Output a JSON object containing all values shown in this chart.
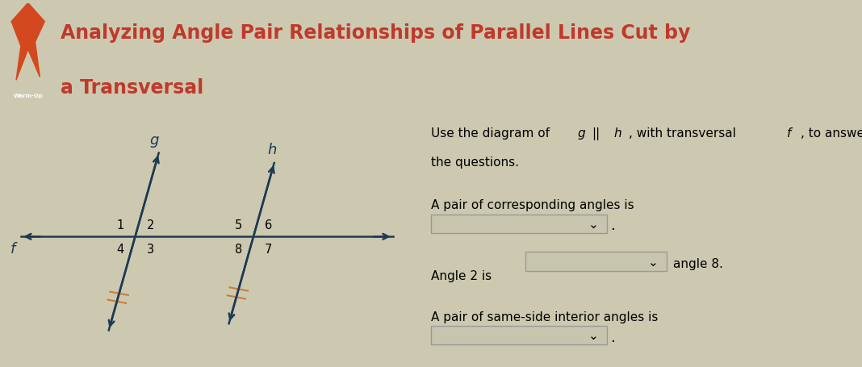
{
  "title_line1": "Analyzing Angle Pair Relationships of Parallel Lines Cut by",
  "title_line2": "a Transversal",
  "title_color": "#c0392b",
  "header_bg": "#d9d9d9",
  "body_bg": "#ccc9b0",
  "warmup_label": "Warm-Up",
  "instruction_text_1": "Use the diagram of ",
  "instruction_g": "g",
  "instruction_text_2": "||",
  "instruction_h": "h",
  "instruction_text_3": ", with transversal ",
  "instruction_f": "f",
  "instruction_text_4": ", to answer",
  "instruction_line2": "the questions.",
  "q1_label": "A pair of corresponding angles is",
  "q2_label_pre": "Angle 2 is",
  "q2_label_post": "angle 8.",
  "q3_label": "A pair of same-side interior angles is",
  "line_color": "#1e3a52",
  "tick_color": "#c87d3a",
  "label_color": "#000000",
  "icon_bg": "#1e3a52",
  "icon_flame_color": "#d44820",
  "box_color": "#c8c5ae",
  "box_edge": "#999999"
}
